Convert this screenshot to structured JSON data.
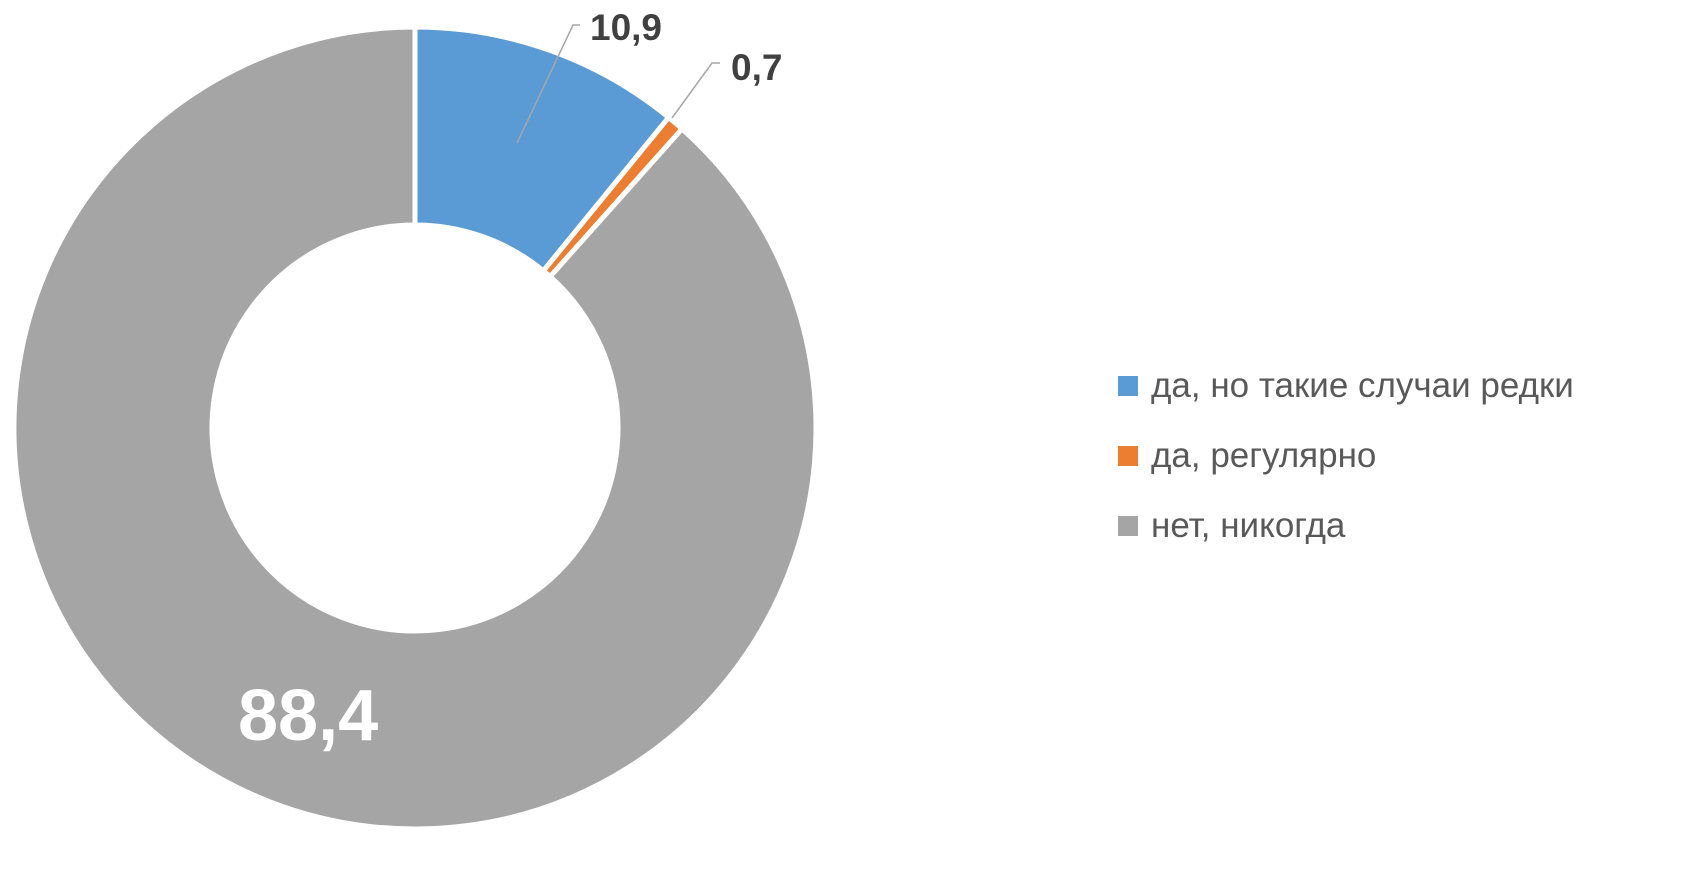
{
  "chart_data": {
    "type": "pie",
    "donut": true,
    "legend_position": "right",
    "categories": [
      "да, но такие случаи редки",
      "да, регулярно",
      "нет, никогда"
    ],
    "values": [
      10.9,
      0.7,
      88.4
    ],
    "data_labels": [
      "10,9",
      "0,7",
      "88,4"
    ],
    "colors": [
      "#5B9BD5",
      "#ED7D31",
      "#A5A5A5"
    ]
  }
}
